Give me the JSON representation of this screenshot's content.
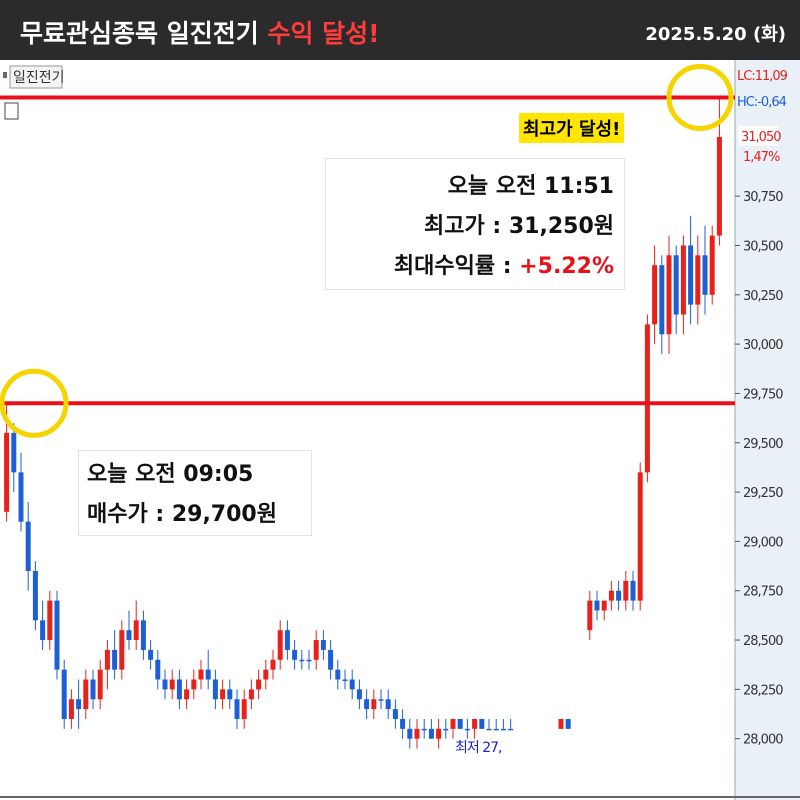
{
  "header": {
    "title": "무료관심종목 일진전기",
    "highlight": "수익 달성!",
    "date": "2025.5.20 (화)"
  },
  "chart_data": {
    "type": "candlestick",
    "name": "일진전기",
    "up_color": "#e8211b",
    "down_color": "#1d5fd6",
    "ref_color": "#e8111b",
    "ylim": [
      27740,
      31440
    ],
    "yticks": [
      {
        "value": 28000,
        "label": "28,000"
      },
      {
        "value": 28250,
        "label": "28,250"
      },
      {
        "value": 28500,
        "label": "28,500"
      },
      {
        "value": 28750,
        "label": "28,750"
      },
      {
        "value": 29000,
        "label": "29,000"
      },
      {
        "value": 29250,
        "label": "29,250"
      },
      {
        "value": 29500,
        "label": "29,500"
      },
      {
        "value": 29750,
        "label": "29,750"
      },
      {
        "value": 30000,
        "label": "30,000"
      },
      {
        "value": 30250,
        "label": "30,250"
      },
      {
        "value": 30500,
        "label": "30,500"
      },
      {
        "value": 30750,
        "label": "30,750"
      }
    ],
    "ref_lines": [
      29700,
      31250
    ],
    "candles": [
      [
        29150,
        29700,
        29100,
        29550
      ],
      [
        29550,
        29600,
        29250,
        29350
      ],
      [
        29350,
        29450,
        29050,
        29100
      ],
      [
        29100,
        29200,
        28750,
        28850
      ],
      [
        28850,
        28900,
        28550,
        28600
      ],
      [
        28600,
        28700,
        28450,
        28500
      ],
      [
        28500,
        28750,
        28450,
        28700
      ],
      [
        28700,
        28750,
        28300,
        28350
      ],
      [
        28350,
        28400,
        28050,
        28100
      ],
      [
        28100,
        28250,
        28050,
        28200
      ],
      [
        28200,
        28300,
        28050,
        28150
      ],
      [
        28150,
        28350,
        28100,
        28300
      ],
      [
        28300,
        28350,
        28150,
        28200
      ],
      [
        28200,
        28400,
        28150,
        28350
      ],
      [
        28350,
        28500,
        28250,
        28450
      ],
      [
        28450,
        28550,
        28300,
        28350
      ],
      [
        28350,
        28600,
        28300,
        28550
      ],
      [
        28550,
        28650,
        28450,
        28500
      ],
      [
        28500,
        28700,
        28450,
        28600
      ],
      [
        28600,
        28650,
        28400,
        28450
      ],
      [
        28450,
        28500,
        28350,
        28400
      ],
      [
        28400,
        28450,
        28250,
        28300
      ],
      [
        28300,
        28350,
        28200,
        28250
      ],
      [
        28250,
        28350,
        28200,
        28300
      ],
      [
        28300,
        28350,
        28150,
        28200
      ],
      [
        28200,
        28300,
        28150,
        28250
      ],
      [
        28250,
        28350,
        28200,
        28300
      ],
      [
        28300,
        28400,
        28250,
        28350
      ],
      [
        28350,
        28450,
        28250,
        28300
      ],
      [
        28300,
        28350,
        28150,
        28200
      ],
      [
        28200,
        28300,
        28150,
        28250
      ],
      [
        28250,
        28300,
        28150,
        28200
      ],
      [
        28200,
        28250,
        28050,
        28100
      ],
      [
        28100,
        28250,
        28050,
        28200
      ],
      [
        28200,
        28300,
        28150,
        28250
      ],
      [
        28250,
        28350,
        28200,
        28300
      ],
      [
        28300,
        28400,
        28250,
        28350
      ],
      [
        28350,
        28450,
        28300,
        28400
      ],
      [
        28400,
        28600,
        28350,
        28550
      ],
      [
        28550,
        28600,
        28400,
        28450
      ],
      [
        28450,
        28500,
        28350,
        28400
      ],
      [
        28400,
        28450,
        28350,
        28400
      ],
      [
        28400,
        28450,
        28350,
        28400
      ],
      [
        28400,
        28550,
        28350,
        28500
      ],
      [
        28500,
        28550,
        28400,
        28450
      ],
      [
        28450,
        28500,
        28300,
        28350
      ],
      [
        28350,
        28400,
        28250,
        28300
      ],
      [
        28300,
        28350,
        28250,
        28300
      ],
      [
        28300,
        28350,
        28200,
        28250
      ],
      [
        28250,
        28300,
        28150,
        28200
      ],
      [
        28200,
        28250,
        28100,
        28150
      ],
      [
        28150,
        28250,
        28100,
        28200
      ],
      [
        28200,
        28250,
        28150,
        28200
      ],
      [
        28200,
        28250,
        28100,
        28150
      ],
      [
        28150,
        28200,
        28050,
        28100
      ],
      [
        28100,
        28150,
        28000,
        28050
      ],
      [
        28050,
        28100,
        27950,
        28000
      ],
      [
        28000,
        28100,
        27950,
        28050
      ],
      [
        28050,
        28100,
        28000,
        28050
      ],
      [
        28050,
        28100,
        28000,
        28000
      ],
      [
        28000,
        28100,
        27950,
        28050
      ],
      [
        28050,
        28100,
        28000,
        28050
      ],
      [
        28050,
        28100,
        28000,
        28100
      ],
      [
        28100,
        28100,
        28050,
        28050
      ],
      [
        28050,
        28100,
        28000,
        28050
      ],
      [
        28050,
        28100,
        28000,
        28100
      ],
      [
        28100,
        28100,
        28050,
        28050
      ],
      [
        28050,
        28100,
        28050,
        28050
      ],
      [
        28050,
        28100,
        28050,
        28050
      ],
      [
        28050,
        28100,
        28050,
        28050
      ],
      [
        28050,
        28100,
        28050,
        28050
      ],
      null,
      null,
      null,
      null,
      null,
      null,
      [
        28050,
        28100,
        28050,
        28100
      ],
      [
        28100,
        28100,
        28050,
        28050
      ],
      null,
      null,
      [
        28550,
        28750,
        28500,
        28700
      ],
      [
        28700,
        28750,
        28600,
        28650
      ],
      [
        28650,
        28700,
        28600,
        28700
      ],
      [
        28700,
        28800,
        28650,
        28750
      ],
      [
        28750,
        28800,
        28650,
        28700
      ],
      [
        28700,
        28850,
        28650,
        28800
      ],
      [
        28800,
        28850,
        28650,
        28700
      ],
      [
        28700,
        29400,
        28650,
        29350
      ],
      [
        29350,
        30150,
        29300,
        30100
      ],
      [
        30100,
        30500,
        30000,
        30400
      ],
      [
        30400,
        30450,
        29950,
        30050
      ],
      [
        30050,
        30550,
        29950,
        30450
      ],
      [
        30450,
        30500,
        30050,
        30150
      ],
      [
        30150,
        30550,
        30050,
        30500
      ],
      [
        30500,
        30650,
        30100,
        30200
      ],
      [
        30200,
        30550,
        30100,
        30450
      ],
      [
        30450,
        30600,
        30150,
        30250
      ],
      [
        30250,
        30600,
        30200,
        30550
      ],
      [
        30550,
        31250,
        30500,
        31050
      ]
    ],
    "side_labels": {
      "lc": "LC:11,09",
      "hc": "HC:-0,64",
      "price": "31,050",
      "pct": "1,47%",
      "low": "최저 27,"
    }
  },
  "annotations": {
    "high_badge": "최고가 달성!",
    "sell": {
      "time": "오늘 오전 11:51",
      "price": "최고가 : 31,250원",
      "label": "최대수익률 : ",
      "rate": "+5.22%"
    },
    "buy": {
      "time": "오늘 오전 09:05",
      "price": "매수가 : 29,700원"
    }
  }
}
